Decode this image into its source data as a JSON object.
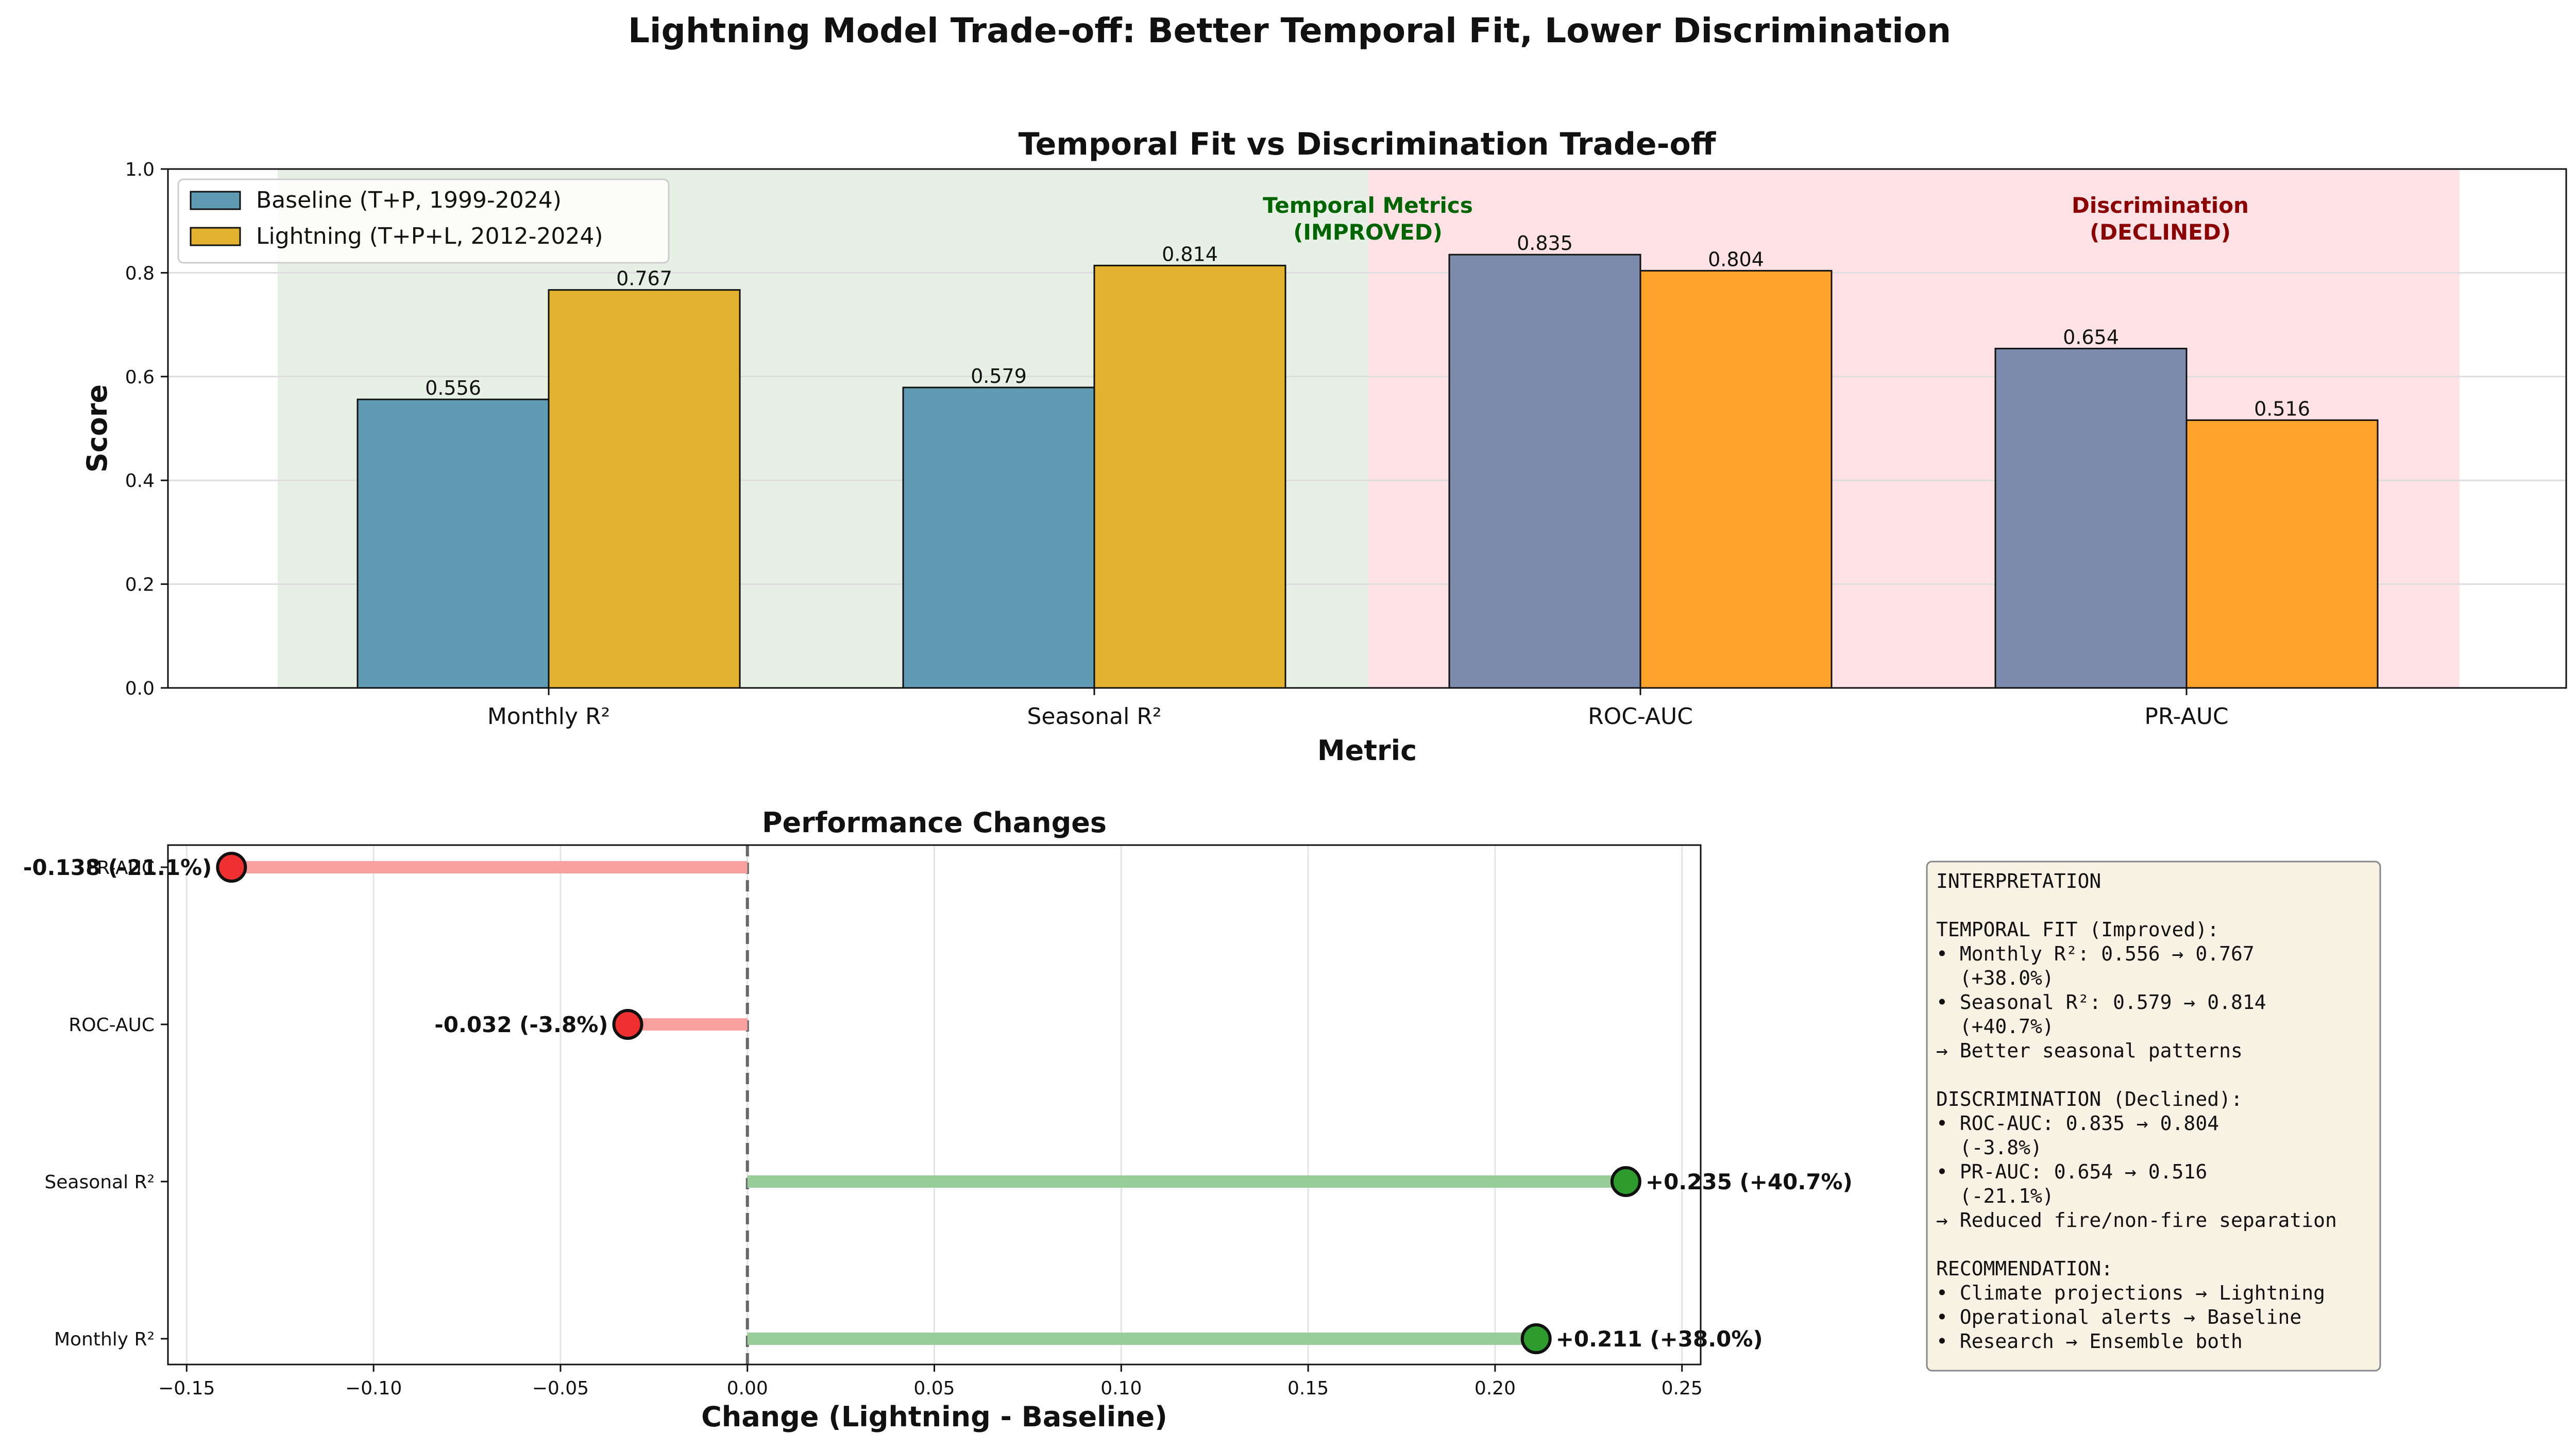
{
  "figure_title": "Lightning Model Trade-off: Better Temporal Fit, Lower Discrimination",
  "colors": {
    "baseline_temporal": "#5f9bb2",
    "baseline_discrim": "#7b8bad",
    "lightning_temporal": "#e3b22f",
    "lightning_discrim": "#ffa32c",
    "improved_bg": "#e6f0e4",
    "declined_bg": "#ffe2e6",
    "improved_text": "#006400",
    "declined_text": "#8b0000",
    "pos_line": "#98cc98",
    "neg_line": "#f8a0a0",
    "pos_dot": "#2e9b2e",
    "neg_dot": "#f03030",
    "textbox_bg": "#f8f2e4"
  },
  "chart_data": [
    {
      "type": "bar",
      "title": "Temporal Fit vs Discrimination Trade-off",
      "xlabel": "Metric",
      "ylabel": "Score",
      "ylim": [
        0,
        1.0
      ],
      "yticks": [
        "0.0",
        "0.2",
        "0.4",
        "0.6",
        "0.8",
        "1.0"
      ],
      "grid": true,
      "legend_position": "top-left",
      "categories": [
        "Monthly R²",
        "Seasonal R²",
        "ROC-AUC",
        "PR-AUC"
      ],
      "series": [
        {
          "name": "Baseline (T+P, 1999-2024)",
          "values": [
            0.556,
            0.579,
            0.835,
            0.654
          ],
          "labels": [
            "0.556",
            "0.579",
            "0.835",
            "0.654"
          ]
        },
        {
          "name": "Lightning (T+P+L, 2012-2024)",
          "values": [
            0.767,
            0.814,
            0.804,
            0.516
          ],
          "labels": [
            "0.767",
            "0.814",
            "0.804",
            "0.516"
          ]
        }
      ],
      "regions": [
        {
          "label_line1": "Temporal Metrics",
          "label_line2": "(IMPROVED)",
          "categories": [
            "Monthly R²",
            "Seasonal R²"
          ]
        },
        {
          "label_line1": "Discrimination",
          "label_line2": "(DECLINED)",
          "categories": [
            "ROC-AUC",
            "PR-AUC"
          ]
        }
      ]
    },
    {
      "type": "lollipop",
      "title": "Performance Changes",
      "xlabel": "Change (Lightning - Baseline)",
      "xlim": [
        -0.155,
        0.255
      ],
      "xticks": [
        "−0.15",
        "−0.10",
        "−0.05",
        "0.00",
        "0.05",
        "0.10",
        "0.15",
        "0.20",
        "0.25"
      ],
      "grid": true,
      "categories": [
        "PR-AUC",
        "ROC-AUC",
        "Seasonal R²",
        "Monthly R²"
      ],
      "values": [
        -0.138,
        -0.032,
        0.235,
        0.211
      ],
      "labels": [
        "-0.138 (-21.1%)",
        "-0.032 (-3.8%)",
        "+0.235 (+40.7%)",
        "+0.211 (+38.0%)"
      ]
    }
  ],
  "interpretation_lines": [
    "INTERPRETATION",
    "",
    "TEMPORAL FIT (Improved):",
    "• Monthly R²: 0.556 → 0.767",
    "  (+38.0%)",
    "• Seasonal R²: 0.579 → 0.814",
    "  (+40.7%)",
    "→ Better seasonal patterns",
    "",
    "DISCRIMINATION (Declined):",
    "• ROC-AUC: 0.835 → 0.804",
    "  (-3.8%)",
    "• PR-AUC: 0.654 → 0.516",
    "  (-21.1%)",
    "→ Reduced fire/non-fire separation",
    "",
    "RECOMMENDATION:",
    "• Climate projections → Lightning",
    "• Operational alerts → Baseline",
    "• Research → Ensemble both"
  ]
}
